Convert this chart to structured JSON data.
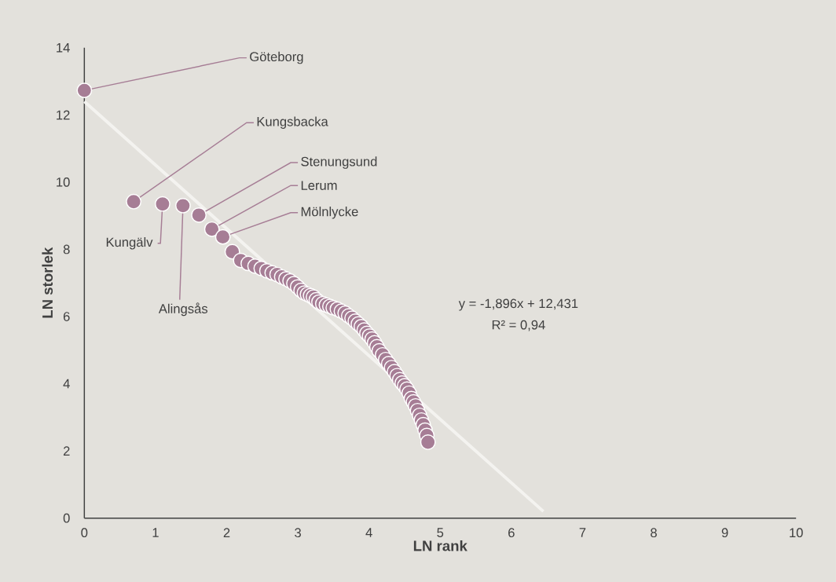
{
  "chart_data": {
    "type": "scatter",
    "xlabel": "LN rank",
    "ylabel": "LN storlek",
    "xlim": [
      0,
      10
    ],
    "ylim": [
      0,
      14
    ],
    "xticks": [
      0,
      1,
      2,
      3,
      4,
      5,
      6,
      7,
      8,
      9,
      10
    ],
    "yticks": [
      0,
      2,
      4,
      6,
      8,
      10,
      12,
      14
    ],
    "series": [
      {
        "marker": "circle",
        "color": "#a67d95",
        "x": [
          0,
          0.693,
          1.099,
          1.386,
          1.609,
          1.792,
          1.946,
          2.079,
          2.197,
          2.303,
          2.398,
          2.485,
          2.565,
          2.639,
          2.708,
          2.773,
          2.833,
          2.89,
          2.944,
          2.996,
          3.045,
          3.091,
          3.135,
          3.178,
          3.219,
          3.258,
          3.296,
          3.35,
          3.401,
          3.45,
          3.497,
          3.555,
          3.611,
          3.664,
          3.714,
          3.761,
          3.807,
          3.85,
          3.892,
          3.932,
          3.97,
          4.007,
          4.043,
          4.078,
          4.111,
          4.143,
          4.19,
          4.234,
          4.277,
          4.317,
          4.357,
          4.394,
          4.431,
          4.466,
          4.5,
          4.533,
          4.564,
          4.595,
          4.625,
          4.654,
          4.682,
          4.71,
          4.736,
          4.762,
          4.787,
          4.812,
          4.828
        ],
        "values": [
          12.73,
          9.42,
          9.35,
          9.3,
          9.02,
          8.6,
          8.37,
          7.93,
          7.67,
          7.58,
          7.5,
          7.43,
          7.36,
          7.3,
          7.25,
          7.18,
          7.12,
          7.06,
          6.98,
          6.88,
          6.78,
          6.7,
          6.66,
          6.62,
          6.58,
          6.5,
          6.43,
          6.38,
          6.34,
          6.3,
          6.26,
          6.22,
          6.16,
          6.1,
          6.02,
          5.95,
          5.86,
          5.78,
          5.7,
          5.6,
          5.5,
          5.42,
          5.33,
          5.22,
          5.1,
          4.98,
          4.86,
          4.72,
          4.6,
          4.48,
          4.36,
          4.24,
          4.12,
          4.02,
          3.94,
          3.84,
          3.72,
          3.56,
          3.46,
          3.34,
          3.2,
          3.06,
          2.92,
          2.78,
          2.62,
          2.46,
          2.26
        ]
      },
      {
        "type": "line",
        "color": "#f4f3f0",
        "x": [
          0,
          6.45
        ],
        "values": [
          12.4,
          0.2
        ]
      }
    ],
    "annotations": [
      {
        "text": "Göteborg",
        "x": 0,
        "y": 12.73
      },
      {
        "text": "Kungsbacka",
        "x": 0.693,
        "y": 9.42
      },
      {
        "text": "Kungälv",
        "x": 1.099,
        "y": 9.35
      },
      {
        "text": "Alingsås",
        "x": 1.386,
        "y": 9.3
      },
      {
        "text": "Stenungsund",
        "x": 1.609,
        "y": 9.02
      },
      {
        "text": "Lerum",
        "x": 1.792,
        "y": 8.6
      },
      {
        "text": "Mölnlycke",
        "x": 1.946,
        "y": 8.37
      },
      "y = -1,896x + 12,431",
      "R² = 0,94"
    ]
  }
}
